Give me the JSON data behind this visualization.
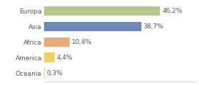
{
  "categories": [
    "Europa",
    "Asia",
    "Africa",
    "America",
    "Oceania"
  ],
  "values": [
    46.2,
    38.7,
    10.4,
    4.4,
    0.3
  ],
  "labels": [
    "46,2%",
    "38,7%",
    "10,4%",
    "4,4%",
    "0,3%"
  ],
  "bar_colors": [
    "#b5c98e",
    "#6b8cba",
    "#f0a878",
    "#f0d060",
    "#f0c878"
  ],
  "background_color": "#ffffff",
  "xlim": [
    0,
    60
  ],
  "bar_height": 0.62,
  "label_fontsize": 6.5,
  "tick_fontsize": 6.5
}
